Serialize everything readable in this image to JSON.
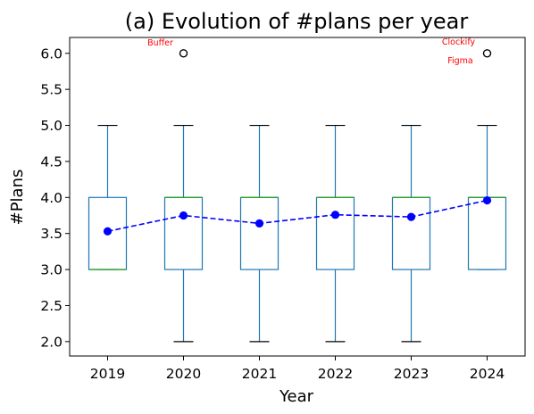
{
  "chart_data": {
    "type": "box",
    "title": "(a) Evolution of #plans per year",
    "xlabel": "Year",
    "ylabel": "#Plans",
    "ylim": [
      1.8,
      6.22
    ],
    "yticks": [
      "2.0",
      "2.5",
      "3.0",
      "3.5",
      "4.0",
      "4.5",
      "5.0",
      "5.5",
      "6.0"
    ],
    "categories": [
      "2019",
      "2020",
      "2021",
      "2022",
      "2023",
      "2024"
    ],
    "boxes": [
      {
        "year": "2019",
        "whisker_low": 3.0,
        "q1": 3.0,
        "median": 3.0,
        "q3": 4.0,
        "whisker_high": 5.0
      },
      {
        "year": "2020",
        "whisker_low": 2.0,
        "q1": 3.0,
        "median": 4.0,
        "q3": 4.0,
        "whisker_high": 5.0
      },
      {
        "year": "2021",
        "whisker_low": 2.0,
        "q1": 3.0,
        "median": 4.0,
        "q3": 4.0,
        "whisker_high": 5.0
      },
      {
        "year": "2022",
        "whisker_low": 2.0,
        "q1": 3.0,
        "median": 4.0,
        "q3": 4.0,
        "whisker_high": 5.0
      },
      {
        "year": "2023",
        "whisker_low": 2.0,
        "q1": 3.0,
        "median": 4.0,
        "q3": 4.0,
        "whisker_high": 5.0
      },
      {
        "year": "2024",
        "whisker_low": 3.0,
        "q1": 3.0,
        "median": 4.0,
        "q3": 4.0,
        "whisker_high": 5.0
      }
    ],
    "outliers": [
      {
        "year": "2020",
        "value": 6.0
      },
      {
        "year": "2024",
        "value": 6.0
      }
    ],
    "mean_series": {
      "values": [
        3.53,
        3.75,
        3.64,
        3.76,
        3.73,
        3.96
      ]
    },
    "annotations": [
      {
        "text": "Buffer",
        "year": "2020",
        "value": 6.0
      },
      {
        "text": "Clockify",
        "year": "2024",
        "value": 6.0
      },
      {
        "text": "Figma",
        "year": "2024",
        "value": 6.0
      }
    ],
    "colors": {
      "box": "#1f77b4",
      "median": "#2ca02c",
      "mean": "#0000ff",
      "annotation": "#ff0000",
      "axis": "#000000"
    },
    "grid": false
  }
}
